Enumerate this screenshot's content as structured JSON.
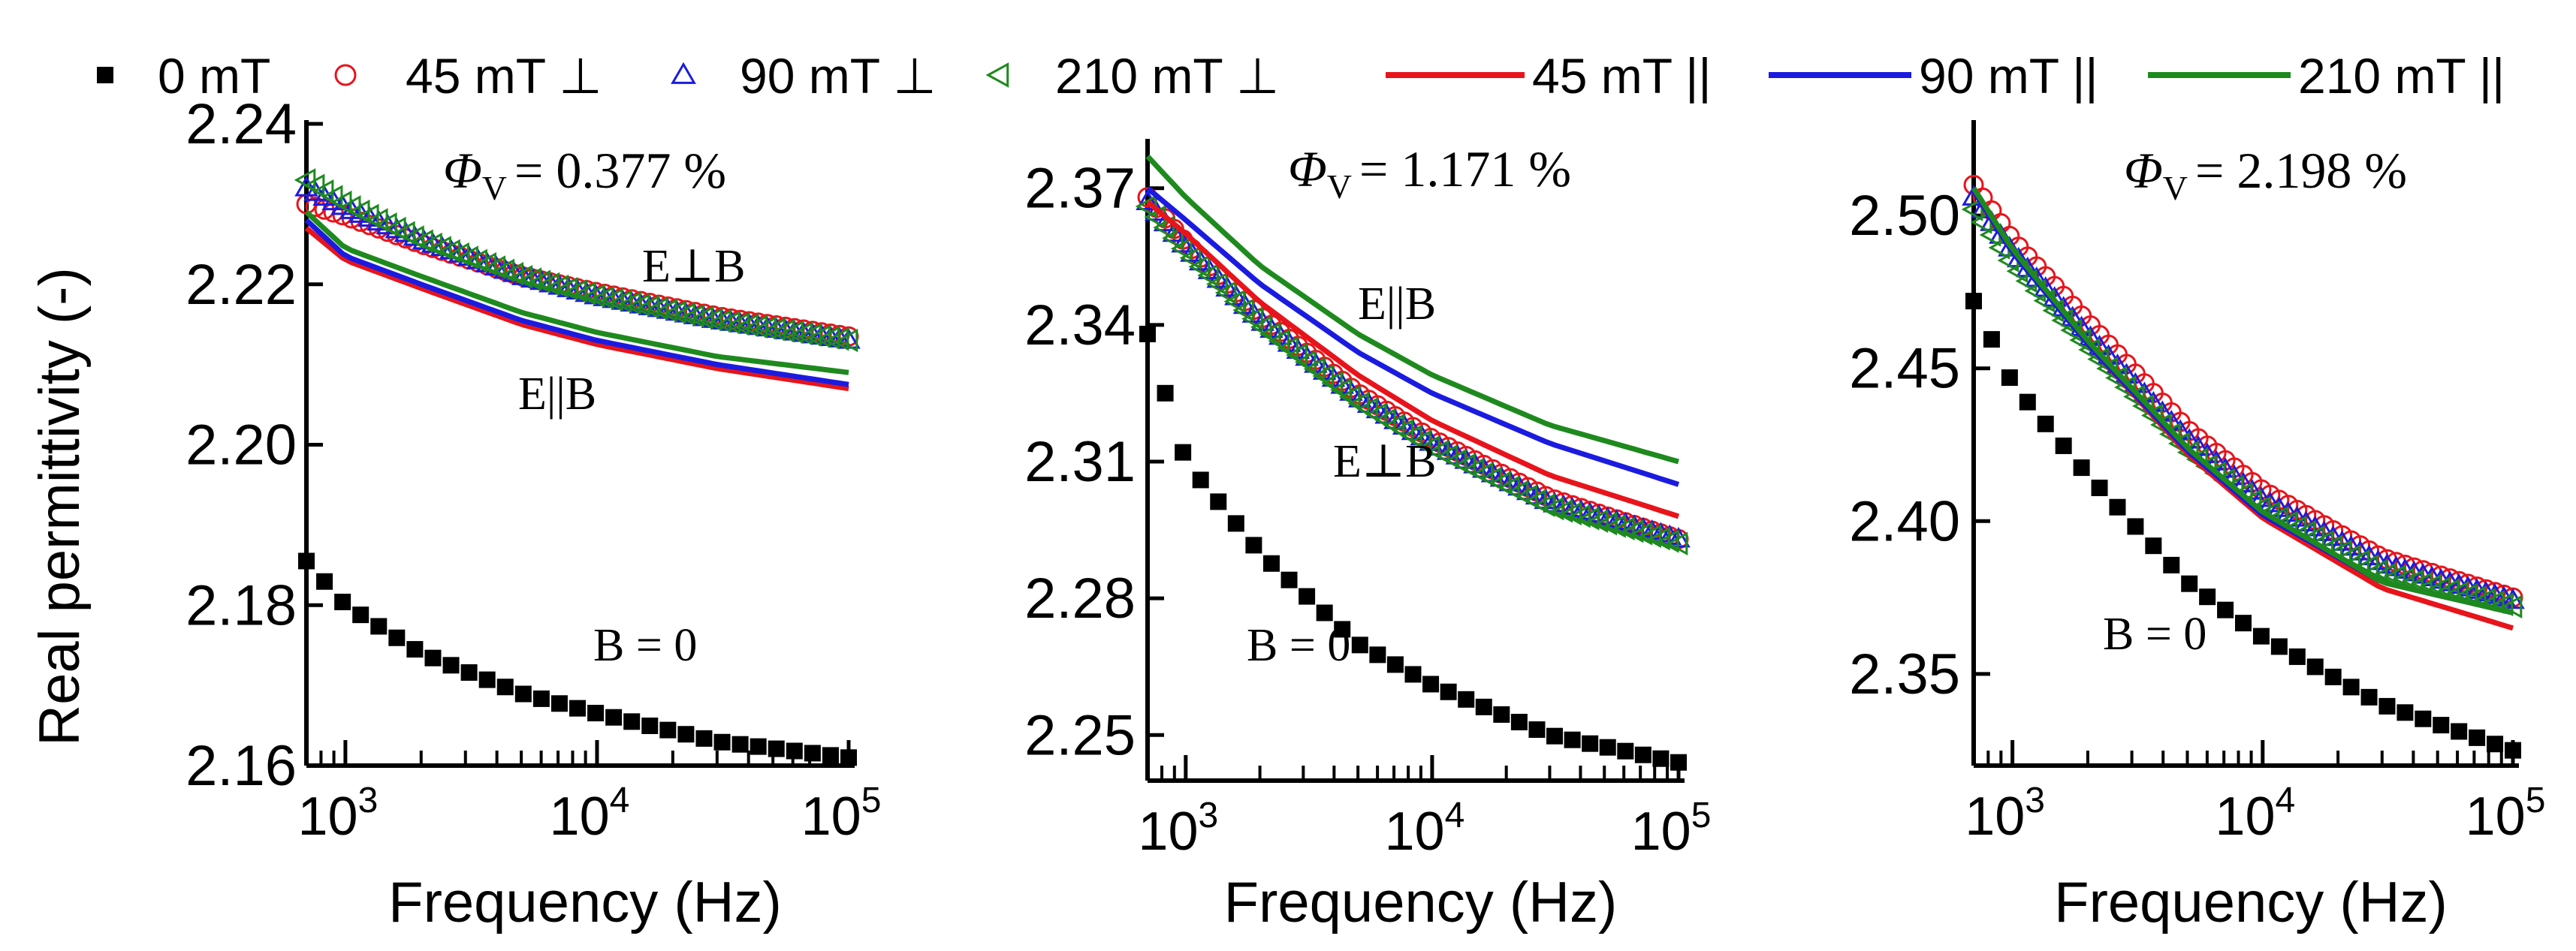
{
  "legend": [
    {
      "label": "0 mT",
      "marker": "square-filled",
      "color": "#000000"
    },
    {
      "label": "45 mT ⊥",
      "marker": "circle-open",
      "color": "#e8141b"
    },
    {
      "label": "90 mT ⊥",
      "marker": "triangle-up-open",
      "color": "#1b1be0"
    },
    {
      "label": "210 mT ⊥",
      "marker": "triangle-left-open",
      "color": "#1e8a1e"
    },
    {
      "label": "45 mT ||",
      "marker": "line",
      "color": "#e8141b"
    },
    {
      "label": "90 mT ||",
      "marker": "line",
      "color": "#1b1be0"
    },
    {
      "label": "210 mT ||",
      "marker": "line",
      "color": "#1e8a1e"
    }
  ],
  "ylabel": "Real permittivity (-)",
  "xlabel": "Frequency (Hz)",
  "chart_data": [
    {
      "type": "line",
      "x_scale": "log",
      "xlim": [
        700,
        100000
      ],
      "ylim": [
        2.16,
        2.24
      ],
      "yticks": [
        2.16,
        2.18,
        2.2,
        2.22,
        2.24
      ],
      "ytick_labels": [
        "2.16",
        "2.18",
        "2.20",
        "2.22",
        "2.24"
      ],
      "xtick_labels": [
        "10",
        "10",
        "10"
      ],
      "xtick_exponents": [
        "3",
        "4",
        "5"
      ],
      "annotations": {
        "phi": "= 0.377 %",
        "perp": "E⊥B",
        "par": "E||B",
        "b0": "B = 0"
      },
      "series": [
        {
          "name": "0 mT",
          "values": [
            [
              700,
              2.1855
            ],
            [
              1000,
              2.18
            ],
            [
              2000,
              2.174
            ],
            [
              5000,
              2.169
            ],
            [
              10000,
              2.1665
            ],
            [
              30000,
              2.163
            ],
            [
              100000,
              2.161
            ]
          ]
        },
        {
          "name": "45 mT ⊥",
          "values": [
            [
              700,
              2.23
            ],
            [
              1000,
              2.2285
            ],
            [
              2000,
              2.225
            ],
            [
              5000,
              2.221
            ],
            [
              10000,
              2.219
            ],
            [
              30000,
              2.216
            ],
            [
              100000,
              2.2135
            ]
          ]
        },
        {
          "name": "90 mT ⊥",
          "values": [
            [
              700,
              2.232
            ],
            [
              1000,
              2.2295
            ],
            [
              2000,
              2.2255
            ],
            [
              5000,
              2.221
            ],
            [
              10000,
              2.2185
            ],
            [
              30000,
              2.2155
            ],
            [
              100000,
              2.213
            ]
          ]
        },
        {
          "name": "210 mT ⊥",
          "values": [
            [
              700,
              2.233
            ],
            [
              1000,
              2.23
            ],
            [
              2000,
              2.2255
            ],
            [
              5000,
              2.221
            ],
            [
              10000,
              2.2185
            ],
            [
              30000,
              2.2155
            ],
            [
              100000,
              2.213
            ]
          ]
        },
        {
          "name": "45 mT ||",
          "values": [
            [
              700,
              2.227
            ],
            [
              1000,
              2.223
            ],
            [
              2000,
              2.2195
            ],
            [
              5000,
              2.215
            ],
            [
              10000,
              2.2125
            ],
            [
              30000,
              2.2095
            ],
            [
              100000,
              2.207
            ]
          ]
        },
        {
          "name": "90 mT ||",
          "values": [
            [
              700,
              2.228
            ],
            [
              1000,
              2.2235
            ],
            [
              2000,
              2.22
            ],
            [
              5000,
              2.2155
            ],
            [
              10000,
              2.213
            ],
            [
              30000,
              2.21
            ],
            [
              100000,
              2.2075
            ]
          ]
        },
        {
          "name": "210 mT ||",
          "values": [
            [
              700,
              2.229
            ],
            [
              1000,
              2.2245
            ],
            [
              2000,
              2.221
            ],
            [
              5000,
              2.2165
            ],
            [
              10000,
              2.214
            ],
            [
              30000,
              2.211
            ],
            [
              100000,
              2.209
            ]
          ]
        }
      ]
    },
    {
      "type": "line",
      "x_scale": "log",
      "xlim": [
        700,
        100000
      ],
      "ylim": [
        2.24,
        2.38
      ],
      "yticks": [
        2.25,
        2.28,
        2.31,
        2.34,
        2.37
      ],
      "ytick_labels": [
        "2.25",
        "2.28",
        "2.31",
        "2.34",
        "2.37"
      ],
      "xtick_labels": [
        "10",
        "10",
        "10"
      ],
      "xtick_exponents": [
        "3",
        "4",
        "5"
      ],
      "annotations": {
        "phi": "= 1.171 %",
        "par": "E||B",
        "perp": "E⊥B",
        "b0": "B = 0"
      },
      "series": [
        {
          "name": "0 mT",
          "values": [
            [
              700,
              2.338
            ],
            [
              1000,
              2.31
            ],
            [
              2000,
              2.29
            ],
            [
              5000,
              2.27
            ],
            [
              10000,
              2.261
            ],
            [
              30000,
              2.25
            ],
            [
              100000,
              2.244
            ]
          ]
        },
        {
          "name": "45 mT ⊥",
          "values": [
            [
              700,
              2.368
            ],
            [
              1000,
              2.358
            ],
            [
              2000,
              2.342
            ],
            [
              5000,
              2.325
            ],
            [
              10000,
              2.315
            ],
            [
              30000,
              2.302
            ],
            [
              100000,
              2.293
            ]
          ]
        },
        {
          "name": "90 mT ⊥",
          "values": [
            [
              700,
              2.367
            ],
            [
              1000,
              2.357
            ],
            [
              2000,
              2.341
            ],
            [
              5000,
              2.324
            ],
            [
              10000,
              2.314
            ],
            [
              30000,
              2.301
            ],
            [
              100000,
              2.293
            ]
          ]
        },
        {
          "name": "210 mT ⊥",
          "values": [
            [
              700,
              2.366
            ],
            [
              1000,
              2.356
            ],
            [
              2000,
              2.34
            ],
            [
              5000,
              2.323
            ],
            [
              10000,
              2.313
            ],
            [
              30000,
              2.3
            ],
            [
              100000,
              2.292
            ]
          ]
        },
        {
          "name": "45 mT ||",
          "values": [
            [
              700,
              2.367
            ],
            [
              1000,
              2.36
            ],
            [
              2000,
              2.345
            ],
            [
              5000,
              2.329
            ],
            [
              10000,
              2.319
            ],
            [
              30000,
              2.307
            ],
            [
              100000,
              2.298
            ]
          ]
        },
        {
          "name": "90 mT ||",
          "values": [
            [
              700,
              2.37
            ],
            [
              1000,
              2.363
            ],
            [
              2000,
              2.349
            ],
            [
              5000,
              2.334
            ],
            [
              10000,
              2.325
            ],
            [
              30000,
              2.314
            ],
            [
              100000,
              2.305
            ]
          ]
        },
        {
          "name": "210 mT ||",
          "values": [
            [
              700,
              2.377
            ],
            [
              1000,
              2.368
            ],
            [
              2000,
              2.353
            ],
            [
              5000,
              2.338
            ],
            [
              10000,
              2.329
            ],
            [
              30000,
              2.318
            ],
            [
              100000,
              2.31
            ]
          ]
        }
      ]
    },
    {
      "type": "line",
      "x_scale": "log",
      "xlim": [
        700,
        100000
      ],
      "ylim": [
        2.32,
        2.53
      ],
      "yticks": [
        2.35,
        2.4,
        2.45,
        2.5
      ],
      "ytick_labels": [
        "2.35",
        "2.40",
        "2.45",
        "2.50"
      ],
      "xtick_labels": [
        "10",
        "10",
        "10"
      ],
      "xtick_exponents": [
        "3",
        "4",
        "5"
      ],
      "annotations": {
        "phi": "= 2.198 %",
        "b0": "B = 0"
      },
      "series": [
        {
          "name": "0 mT",
          "values": [
            [
              700,
              2.472
            ],
            [
              1000,
              2.445
            ],
            [
              2000,
              2.415
            ],
            [
              5000,
              2.38
            ],
            [
              10000,
              2.362
            ],
            [
              30000,
              2.34
            ],
            [
              100000,
              2.325
            ]
          ]
        },
        {
          "name": "45 mT ⊥",
          "values": [
            [
              700,
              2.51
            ],
            [
              1000,
              2.492
            ],
            [
              2000,
              2.465
            ],
            [
              5000,
              2.43
            ],
            [
              10000,
              2.41
            ],
            [
              30000,
              2.388
            ],
            [
              100000,
              2.375
            ]
          ]
        },
        {
          "name": "90 mT ⊥",
          "values": [
            [
              700,
              2.506
            ],
            [
              1000,
              2.488
            ],
            [
              2000,
              2.461
            ],
            [
              5000,
              2.427
            ],
            [
              10000,
              2.407
            ],
            [
              30000,
              2.386
            ],
            [
              100000,
              2.374
            ]
          ]
        },
        {
          "name": "210 mT ⊥",
          "values": [
            [
              700,
              2.502
            ],
            [
              1000,
              2.484
            ],
            [
              2000,
              2.457
            ],
            [
              5000,
              2.423
            ],
            [
              10000,
              2.404
            ],
            [
              30000,
              2.383
            ],
            [
              100000,
              2.372
            ]
          ]
        },
        {
          "name": "45 mT ||",
          "values": [
            [
              700,
              2.508
            ],
            [
              1000,
              2.488
            ],
            [
              2000,
              2.458
            ],
            [
              5000,
              2.422
            ],
            [
              10000,
              2.401
            ],
            [
              30000,
              2.378
            ],
            [
              100000,
              2.365
            ]
          ]
        },
        {
          "name": "90 mT ||",
          "values": [
            [
              700,
              2.508
            ],
            [
              1000,
              2.488
            ],
            [
              2000,
              2.458
            ],
            [
              5000,
              2.423
            ],
            [
              10000,
              2.402
            ],
            [
              30000,
              2.38
            ],
            [
              100000,
              2.37
            ]
          ]
        },
        {
          "name": "210 mT ||",
          "values": [
            [
              700,
              2.509
            ],
            [
              1000,
              2.489
            ],
            [
              2000,
              2.459
            ],
            [
              5000,
              2.424
            ],
            [
              10000,
              2.403
            ],
            [
              30000,
              2.38
            ],
            [
              100000,
              2.37
            ]
          ]
        }
      ]
    }
  ]
}
